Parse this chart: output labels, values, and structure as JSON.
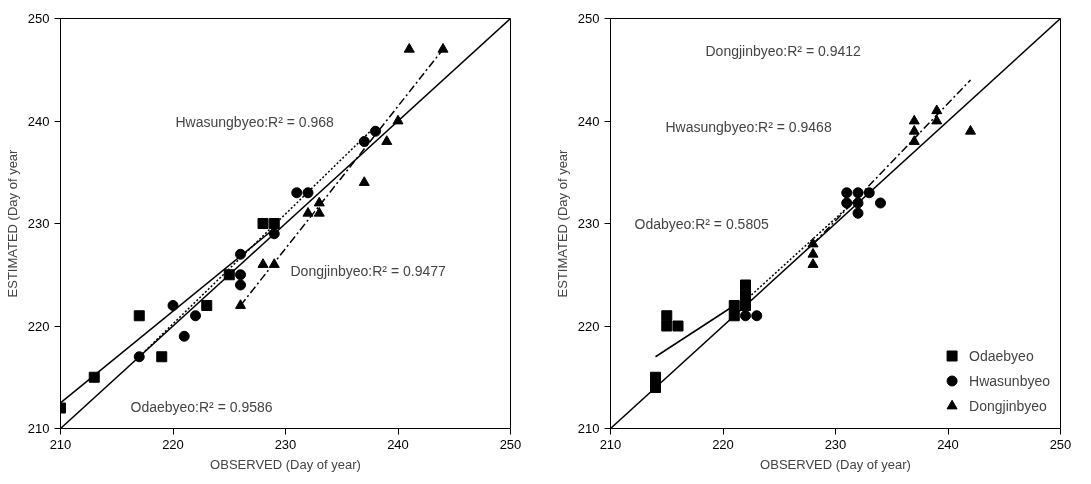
{
  "chart_data": [
    {
      "type": "scatter",
      "xlabel": "OBSERVED (Day of year)",
      "ylabel": "ESTIMATED (Day of year",
      "xlim": [
        210,
        250
      ],
      "ylim": [
        210,
        250
      ],
      "xticks": [
        210,
        220,
        230,
        240,
        250
      ],
      "yticks": [
        210,
        220,
        230,
        240,
        250
      ],
      "grid": false,
      "legend": false,
      "series": [
        {
          "marker": "square",
          "color": "#000000",
          "x": [
            210,
            213,
            217,
            219,
            223,
            225,
            228,
            229
          ],
          "values": [
            212,
            215,
            221,
            217,
            222,
            225,
            230,
            230
          ]
        },
        {
          "marker": "circle",
          "color": "#000000",
          "x": [
            217,
            220,
            221,
            222,
            226,
            226,
            226,
            229,
            231,
            232,
            237,
            238
          ],
          "values": [
            217,
            222,
            219,
            221,
            227,
            225,
            224,
            229,
            233,
            233,
            238,
            239
          ]
        },
        {
          "marker": "triangle",
          "color": "#000000",
          "x": [
            226,
            228,
            229,
            232,
            233,
            233,
            237,
            239,
            240,
            241,
            244
          ],
          "values": [
            222,
            226,
            226,
            231,
            231,
            232,
            234,
            238,
            240,
            247,
            247
          ]
        },
        {
          "type": "line",
          "line_style": "solid",
          "color": "#000000",
          "x": [
            210,
            250
          ],
          "values": [
            210,
            250
          ]
        },
        {
          "type": "line",
          "line_style": "solid",
          "color": "#000000",
          "x": [
            210,
            229
          ],
          "values": [
            212.5,
            229.5
          ]
        },
        {
          "type": "line",
          "line_style": "dotted",
          "color": "#000000",
          "x": [
            217,
            238
          ],
          "values": [
            217,
            239.5
          ]
        },
        {
          "type": "line",
          "line_style": "dashed",
          "color": "#000000",
          "x": [
            226,
            244
          ],
          "values": [
            222,
            247
          ]
        }
      ],
      "annotations": [
        "Hwasungbyeo:R² = 0.968",
        "Dongjinbyeo:R² = 0.9477",
        "Odaebyeo:R² = 0.9586"
      ]
    },
    {
      "type": "scatter",
      "xlabel": "OBSERVED (Day of year)",
      "ylabel": "ESTIMATED (Day of year",
      "xlim": [
        210,
        250
      ],
      "ylim": [
        210,
        250
      ],
      "xticks": [
        210,
        220,
        230,
        240,
        250
      ],
      "yticks": [
        210,
        220,
        230,
        240,
        250
      ],
      "grid": false,
      "legend": "bottom right",
      "series": [
        {
          "name": "Odaebyeo",
          "marker": "square",
          "color": "#000000",
          "x": [
            214,
            214,
            215,
            215,
            216,
            221,
            221,
            222,
            222,
            222
          ],
          "values": [
            214,
            215,
            221,
            220,
            220,
            222,
            221,
            224,
            223,
            222
          ]
        },
        {
          "name": "Hwasunbyeo",
          "marker": "circle",
          "color": "#000000",
          "x": [
            222,
            223,
            231,
            231,
            232,
            232,
            232,
            233,
            234
          ],
          "values": [
            221,
            221,
            233,
            232,
            233,
            232,
            231,
            233,
            232
          ]
        },
        {
          "name": "Dongjinbyeo",
          "marker": "triangle",
          "color": "#000000",
          "x": [
            228,
            228,
            228,
            237,
            237,
            237,
            239,
            239,
            242
          ],
          "values": [
            226,
            227,
            228,
            238,
            239,
            240,
            240,
            241,
            239
          ]
        },
        {
          "type": "line",
          "line_style": "solid",
          "color": "#000000",
          "x": [
            210,
            250
          ],
          "values": [
            210,
            250
          ]
        },
        {
          "type": "line",
          "line_style": "solid",
          "color": "#000000",
          "x": [
            214,
            221
          ],
          "values": [
            217,
            222
          ]
        },
        {
          "type": "line",
          "line_style": "dotted",
          "color": "#000000",
          "x": [
            222,
            233
          ],
          "values": [
            222.5,
            233.5
          ]
        },
        {
          "type": "line",
          "line_style": "dashed",
          "color": "#000000",
          "x": [
            228,
            242
          ],
          "values": [
            228,
            244
          ]
        }
      ],
      "annotations": [
        "Dongjinbyeo:R² = 0.9412",
        "Hwasungbyeo:R² = 0.9468",
        "Odabyeo:R² = 0.5805"
      ]
    }
  ]
}
